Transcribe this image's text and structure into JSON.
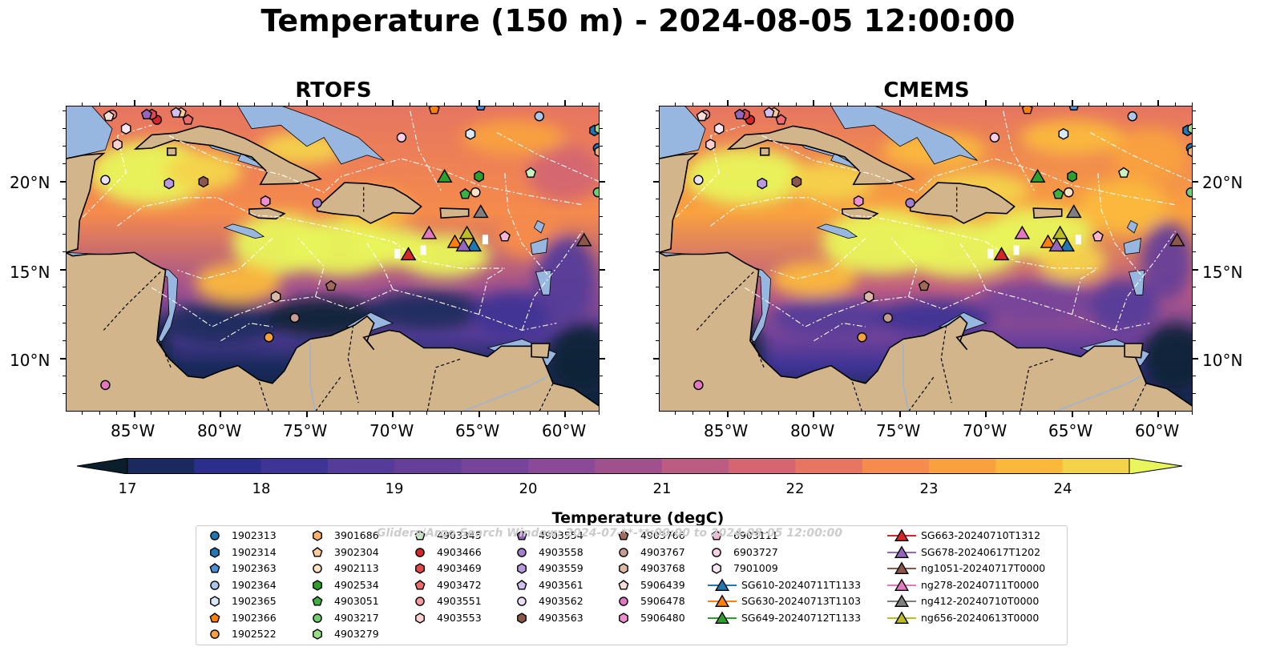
{
  "title": "Temperature (150 m) - 2024-08-05 12:00:00",
  "panels": [
    {
      "title": "RTOFS",
      "variant": "rtofs"
    },
    {
      "title": "CMEMS",
      "variant": "cmems"
    }
  ],
  "map": {
    "lon_range": [
      -89,
      -58
    ],
    "lat_range": [
      7,
      24.3
    ],
    "lon_ticks": [
      "85°W",
      "80°W",
      "75°W",
      "70°W",
      "65°W",
      "60°W"
    ],
    "lat_ticks": [
      "20°N",
      "15°N",
      "10°N"
    ],
    "land_color": "#d3b58b",
    "shelf_color": "#97b7e0"
  },
  "colorbar": {
    "label": "Temperature (degC)",
    "ticks": [
      "17",
      "18",
      "19",
      "20",
      "21",
      "22",
      "23",
      "24"
    ],
    "range": [
      17,
      24.5
    ],
    "step": 0.5,
    "colors": [
      "#0d2235",
      "#1a2a5e",
      "#2b2e8a",
      "#3e3495",
      "#553c99",
      "#663f99",
      "#76449a",
      "#8a4a98",
      "#a1508e",
      "#bd5c82",
      "#d46571",
      "#e67561",
      "#f58b4c",
      "#f9a13f",
      "#fbb93b",
      "#f4d34b"
    ],
    "under_color": "#0a1e2c",
    "over_color": "#e8f55b"
  },
  "legend": {
    "watermark": "Gliders/Argo Search Window: 2024-07-**-**:00:00 to 2024-08-05 12:00:00",
    "columns": [
      [
        {
          "label": "1902313",
          "marker": "circle",
          "color": "#1f77b4"
        },
        {
          "label": "1902314",
          "marker": "hexagon",
          "color": "#1f77b4"
        },
        {
          "label": "1902363",
          "marker": "pentagon",
          "color": "#4a90d9"
        },
        {
          "label": "1902364",
          "marker": "circle",
          "color": "#aec7e8"
        },
        {
          "label": "1902365",
          "marker": "hexagon",
          "color": "#d6eaf8"
        },
        {
          "label": "1902366",
          "marker": "pentagon",
          "color": "#ff7f0e"
        },
        {
          "label": "1902522",
          "marker": "circle",
          "color": "#f7a03c"
        }
      ],
      [
        {
          "label": "3901686",
          "marker": "hexagon",
          "color": "#f9b26a"
        },
        {
          "label": "3902304",
          "marker": "pentagon",
          "color": "#ffcc99"
        },
        {
          "label": "4902113",
          "marker": "circle",
          "color": "#ffe3c2"
        },
        {
          "label": "4902534",
          "marker": "hexagon",
          "color": "#2ca02c"
        },
        {
          "label": "4903051",
          "marker": "pentagon",
          "color": "#3cb043"
        },
        {
          "label": "4903217",
          "marker": "circle",
          "color": "#6fcf6f"
        },
        {
          "label": "4903279",
          "marker": "hexagon",
          "color": "#98df8a"
        }
      ],
      [
        {
          "label": "4903345",
          "marker": "pentagon",
          "color": "#c9f2c0"
        },
        {
          "label": "4903466",
          "marker": "circle",
          "color": "#d62728"
        },
        {
          "label": "4903469",
          "marker": "hexagon",
          "color": "#e0484a"
        },
        {
          "label": "4903472",
          "marker": "pentagon",
          "color": "#ef6b6b"
        },
        {
          "label": "4903551",
          "marker": "circle",
          "color": "#f49a9a"
        },
        {
          "label": "4903553",
          "marker": "hexagon",
          "color": "#fcd0d0"
        }
      ],
      [
        {
          "label": "4903554",
          "marker": "pentagon",
          "color": "#9467bd"
        },
        {
          "label": "4903558",
          "marker": "circle",
          "color": "#a37fd0"
        },
        {
          "label": "4903559",
          "marker": "hexagon",
          "color": "#b99ae0"
        },
        {
          "label": "4903561",
          "marker": "pentagon",
          "color": "#d3bff0"
        },
        {
          "label": "4903562",
          "marker": "circle",
          "color": "#ece0f9"
        },
        {
          "label": "4903563",
          "marker": "hexagon",
          "color": "#8c564b"
        }
      ],
      [
        {
          "label": "4903766",
          "marker": "pentagon",
          "color": "#a06a5a"
        },
        {
          "label": "4903767",
          "marker": "circle",
          "color": "#c49c94"
        },
        {
          "label": "4903768",
          "marker": "hexagon",
          "color": "#dcb8a8"
        },
        {
          "label": "5906439",
          "marker": "pentagon",
          "color": "#f5dfd6"
        },
        {
          "label": "5906478",
          "marker": "circle",
          "color": "#e377c2"
        },
        {
          "label": "5906480",
          "marker": "hexagon",
          "color": "#ee8fd0"
        }
      ],
      [
        {
          "label": "6903111",
          "marker": "pentagon",
          "color": "#f7b6d2"
        },
        {
          "label": "6903727",
          "marker": "circle",
          "color": "#fad0e6"
        },
        {
          "label": "7901009",
          "marker": "hexagon",
          "color": "#fde8f3"
        },
        {
          "label": "SG610-20240711T1133",
          "marker": "triangle",
          "color": "#1f77b4"
        },
        {
          "label": "SG630-20240713T1103",
          "marker": "triangle",
          "color": "#ff7f0e"
        },
        {
          "label": "SG649-20240712T1133",
          "marker": "triangle",
          "color": "#2ca02c"
        }
      ],
      [
        {
          "label": "SG663-20240710T1312",
          "marker": "triangle",
          "color": "#d62728"
        },
        {
          "label": "SG678-20240617T1202",
          "marker": "triangle",
          "color": "#9467bd"
        },
        {
          "label": "ng1051-20240717T0000",
          "marker": "triangle",
          "color": "#8c564b"
        },
        {
          "label": "ng278-20240711T0000",
          "marker": "triangle",
          "color": "#e377c2"
        },
        {
          "label": "ng412-20240710T0000",
          "marker": "triangle",
          "color": "#7f7f7f"
        },
        {
          "label": "ng656-20240613T0000",
          "marker": "triangle",
          "color": "#bcbd22"
        }
      ]
    ]
  },
  "observations": [
    {
      "id": "1902313",
      "lon": -58.1,
      "lat": 21.9
    },
    {
      "id": "1902314",
      "lon": -58.3,
      "lat": 22.9
    },
    {
      "id": "1902363",
      "lon": -64.9,
      "lat": 24.3
    },
    {
      "id": "1902364",
      "lon": -61.5,
      "lat": 23.7
    },
    {
      "id": "1902365",
      "lon": -65.5,
      "lat": 22.7
    },
    {
      "id": "1902366",
      "lon": -67.6,
      "lat": 24.1
    },
    {
      "id": "1902522",
      "lon": -77.2,
      "lat": 11.2
    },
    {
      "id": "3901686",
      "lon": -58.0,
      "lat": 21.7
    },
    {
      "id": "3902304",
      "lon": -82.3,
      "lat": 23.9
    },
    {
      "id": "4902113",
      "lon": -65.2,
      "lat": 19.4
    },
    {
      "id": "4902534",
      "lon": -65.0,
      "lat": 20.3
    },
    {
      "id": "4903051",
      "lon": -65.8,
      "lat": 19.3
    },
    {
      "id": "4903217",
      "lon": -58.1,
      "lat": 19.4
    },
    {
      "id": "4903279",
      "lon": -58.0,
      "lat": 23.0
    },
    {
      "id": "4903345",
      "lon": -62.0,
      "lat": 20.5
    },
    {
      "id": "4903466",
      "lon": -83.7,
      "lat": 23.5
    },
    {
      "id": "4903469",
      "lon": -84.0,
      "lat": 23.8
    },
    {
      "id": "4903472",
      "lon": -81.9,
      "lat": 23.5
    },
    {
      "id": "4903551",
      "lon": -86.3,
      "lat": 23.8
    },
    {
      "id": "4903553",
      "lon": -86.0,
      "lat": 22.1
    },
    {
      "id": "4903554",
      "lon": -84.3,
      "lat": 23.8
    },
    {
      "id": "4903558",
      "lon": -74.4,
      "lat": 18.8
    },
    {
      "id": "4903559",
      "lon": -83.0,
      "lat": 19.9
    },
    {
      "id": "4903561",
      "lon": -82.6,
      "lat": 23.9
    },
    {
      "id": "4903562",
      "lon": -86.7,
      "lat": 20.1
    },
    {
      "id": "4903563",
      "lon": -81.0,
      "lat": 20.0
    },
    {
      "id": "4903766",
      "lon": -73.6,
      "lat": 14.1
    },
    {
      "id": "4903767",
      "lon": -75.7,
      "lat": 12.3
    },
    {
      "id": "4903768",
      "lon": -76.8,
      "lat": 13.5
    },
    {
      "id": "5906439",
      "lon": -86.5,
      "lat": 23.7
    },
    {
      "id": "5906478",
      "lon": -86.7,
      "lat": 8.5
    },
    {
      "id": "5906480",
      "lon": -77.4,
      "lat": 18.9
    },
    {
      "id": "6903111",
      "lon": -63.5,
      "lat": 16.9
    },
    {
      "id": "6903727",
      "lon": -69.5,
      "lat": 22.5
    },
    {
      "id": "7901009",
      "lon": -85.5,
      "lat": 23.0
    },
    {
      "id": "SG610-20240711T1133",
      "lon": -65.3,
      "lat": 16.4
    },
    {
      "id": "SG630-20240713T1103",
      "lon": -66.4,
      "lat": 16.6
    },
    {
      "id": "SG649-20240712T1133",
      "lon": -67.0,
      "lat": 20.3
    },
    {
      "id": "SG663-20240710T1312",
      "lon": -69.1,
      "lat": 15.9
    },
    {
      "id": "SG678-20240617T1202",
      "lon": -65.9,
      "lat": 16.4
    },
    {
      "id": "ng1051-20240717T0000",
      "lon": -58.9,
      "lat": 16.7
    },
    {
      "id": "ng278-20240711T0000",
      "lon": -67.9,
      "lat": 17.1
    },
    {
      "id": "ng412-20240710T0000",
      "lon": -64.9,
      "lat": 18.3
    },
    {
      "id": "ng656-20240613T0000",
      "lon": -65.7,
      "lat": 17.1
    }
  ]
}
